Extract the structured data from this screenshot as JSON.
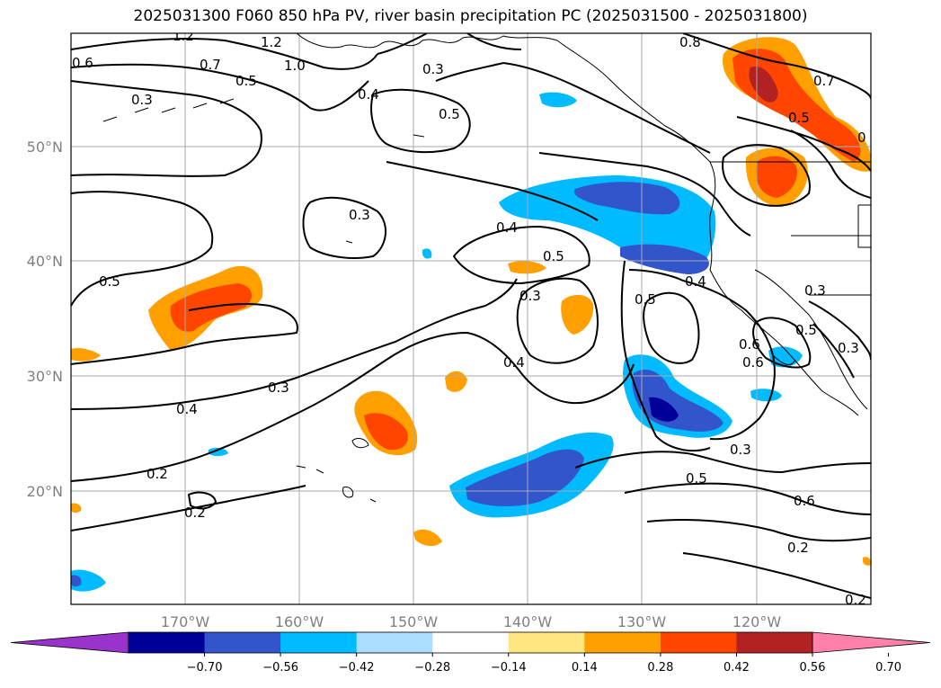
{
  "title": "2025031300 F060 850 hPa PV, river basin precipitation PC (2025031500 - 2025031800)",
  "map": {
    "lat_labels": [
      {
        "lat": 50,
        "text": "50°N"
      },
      {
        "lat": 40,
        "text": "40°N"
      },
      {
        "lat": 30,
        "text": "30°N"
      },
      {
        "lat": 20,
        "text": "20°N"
      }
    ],
    "lon_labels": [
      {
        "lon": -170,
        "text": "170°W"
      },
      {
        "lon": -160,
        "text": "160°W"
      },
      {
        "lon": -150,
        "text": "150°W"
      },
      {
        "lon": -140,
        "text": "140°W"
      },
      {
        "lon": -130,
        "text": "130°W"
      },
      {
        "lon": -120,
        "text": "120°W"
      }
    ],
    "contour_labels": [
      {
        "text": "1.2"
      },
      {
        "text": "1.2"
      },
      {
        "text": "0.6"
      },
      {
        "text": "0.7"
      },
      {
        "text": "1.0"
      },
      {
        "text": "0.5"
      },
      {
        "text": "0.3"
      },
      {
        "text": "0.4"
      },
      {
        "text": "0.3"
      },
      {
        "text": "0.8"
      },
      {
        "text": "0.5"
      },
      {
        "text": "0.7"
      },
      {
        "text": "0.5"
      },
      {
        "text": "0"
      },
      {
        "text": "0.3"
      },
      {
        "text": "0.4"
      },
      {
        "text": "0.5"
      },
      {
        "text": "0.5"
      },
      {
        "text": "0.3"
      },
      {
        "text": "0.5"
      },
      {
        "text": "0.4"
      },
      {
        "text": "0.3"
      },
      {
        "text": "0.5"
      },
      {
        "text": "0.3"
      },
      {
        "text": "0.4"
      },
      {
        "text": "0.3"
      },
      {
        "text": "0.4"
      },
      {
        "text": "0.2"
      },
      {
        "text": "0.2"
      },
      {
        "text": "0.3"
      },
      {
        "text": "0.5"
      },
      {
        "text": "0.6"
      },
      {
        "text": "0.2"
      },
      {
        "text": "0.2"
      },
      {
        "text": "0.6"
      },
      {
        "text": "0.6"
      }
    ]
  },
  "colorbar": {
    "colors": [
      "#9933cc",
      "#000099",
      "#3355cc",
      "#00bbff",
      "#aaddff",
      "#ffffff",
      "#ffe680",
      "#ffa000",
      "#ff4500",
      "#b22222",
      "#ff80aa"
    ],
    "ticks": [
      "−0.70",
      "−0.56",
      "−0.42",
      "−0.28",
      "−0.14",
      "0.14",
      "0.28",
      "0.42",
      "0.56",
      "0.70"
    ]
  }
}
